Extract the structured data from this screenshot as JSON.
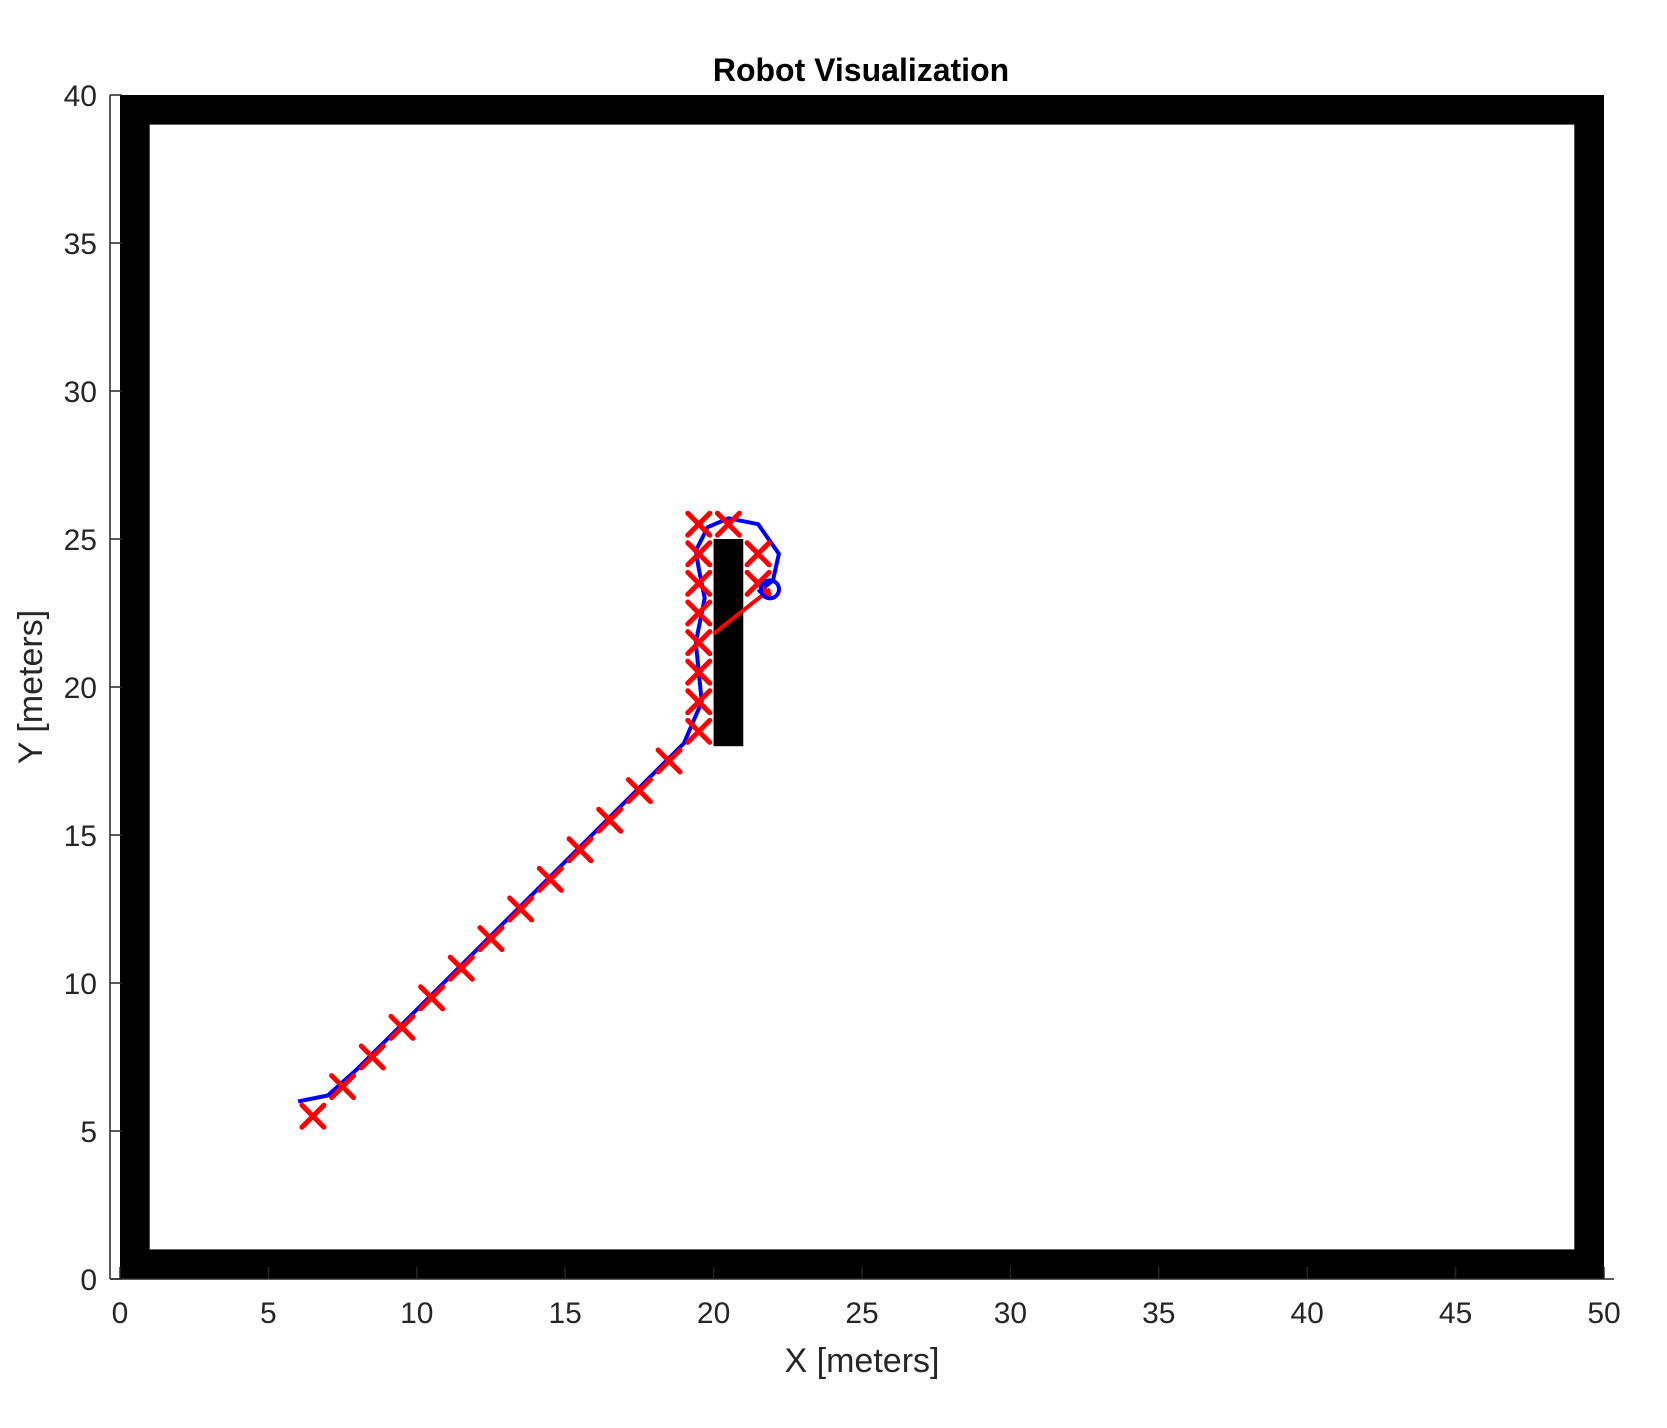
{
  "chart_data": {
    "type": "scatter",
    "title": "Robot Visualization",
    "xlabel": "X [meters]",
    "ylabel": "Y [meters]",
    "xlim": [
      0,
      50
    ],
    "ylim": [
      0,
      40
    ],
    "xticks": [
      0,
      5,
      10,
      15,
      20,
      25,
      30,
      35,
      40,
      45,
      50
    ],
    "yticks": [
      0,
      5,
      10,
      15,
      20,
      25,
      30,
      35,
      40
    ],
    "grid": false,
    "legend": "none",
    "walls": {
      "outer_boundary": {
        "x_range": [
          0,
          50
        ],
        "y_range": [
          0,
          40
        ],
        "thickness": 1
      },
      "obstacle": {
        "x_range": [
          20,
          21
        ],
        "y_range": [
          18,
          25
        ]
      }
    },
    "series": [
      {
        "marker": "line",
        "color": "#0000ff",
        "x": [
          6.0,
          7.0,
          8.0,
          9.0,
          10.0,
          11.0,
          12.0,
          13.0,
          14.0,
          15.0,
          16.0,
          17.0,
          18.0,
          19.0,
          19.6,
          19.5,
          19.4,
          19.7,
          19.5,
          19.4,
          19.8,
          20.5,
          21.5,
          22.2,
          22.0,
          21.5
        ],
        "y": [
          6.0,
          6.2,
          7.1,
          8.1,
          9.1,
          10.1,
          11.1,
          12.1,
          13.1,
          14.1,
          15.1,
          16.1,
          17.1,
          18.1,
          19.5,
          20.5,
          21.5,
          23.0,
          24.0,
          24.6,
          25.4,
          25.7,
          25.5,
          24.5,
          23.6,
          23.2
        ]
      },
      {
        "marker": "x",
        "color": "#ff0000",
        "x": [
          6.5,
          7.5,
          8.5,
          9.5,
          10.5,
          11.5,
          12.5,
          13.5,
          14.5,
          15.5,
          16.5,
          17.5,
          18.5,
          19.5,
          19.5,
          19.5,
          19.5,
          19.5,
          19.5,
          19.5,
          19.5,
          20.5,
          21.5,
          21.5
        ],
        "y": [
          5.5,
          6.5,
          7.5,
          8.5,
          9.5,
          10.5,
          11.5,
          12.5,
          13.5,
          14.5,
          15.5,
          16.5,
          17.5,
          18.5,
          19.5,
          20.5,
          21.5,
          22.5,
          23.5,
          24.5,
          25.5,
          25.5,
          24.5,
          23.5
        ]
      },
      {
        "marker": "line",
        "color": "#ff0000",
        "x": [
          20.0,
          21.9
        ],
        "y": [
          21.8,
          23.3
        ]
      },
      {
        "marker": "circle",
        "color": "#0000ff",
        "x": [
          21.9
        ],
        "y": [
          23.3
        ]
      }
    ]
  }
}
